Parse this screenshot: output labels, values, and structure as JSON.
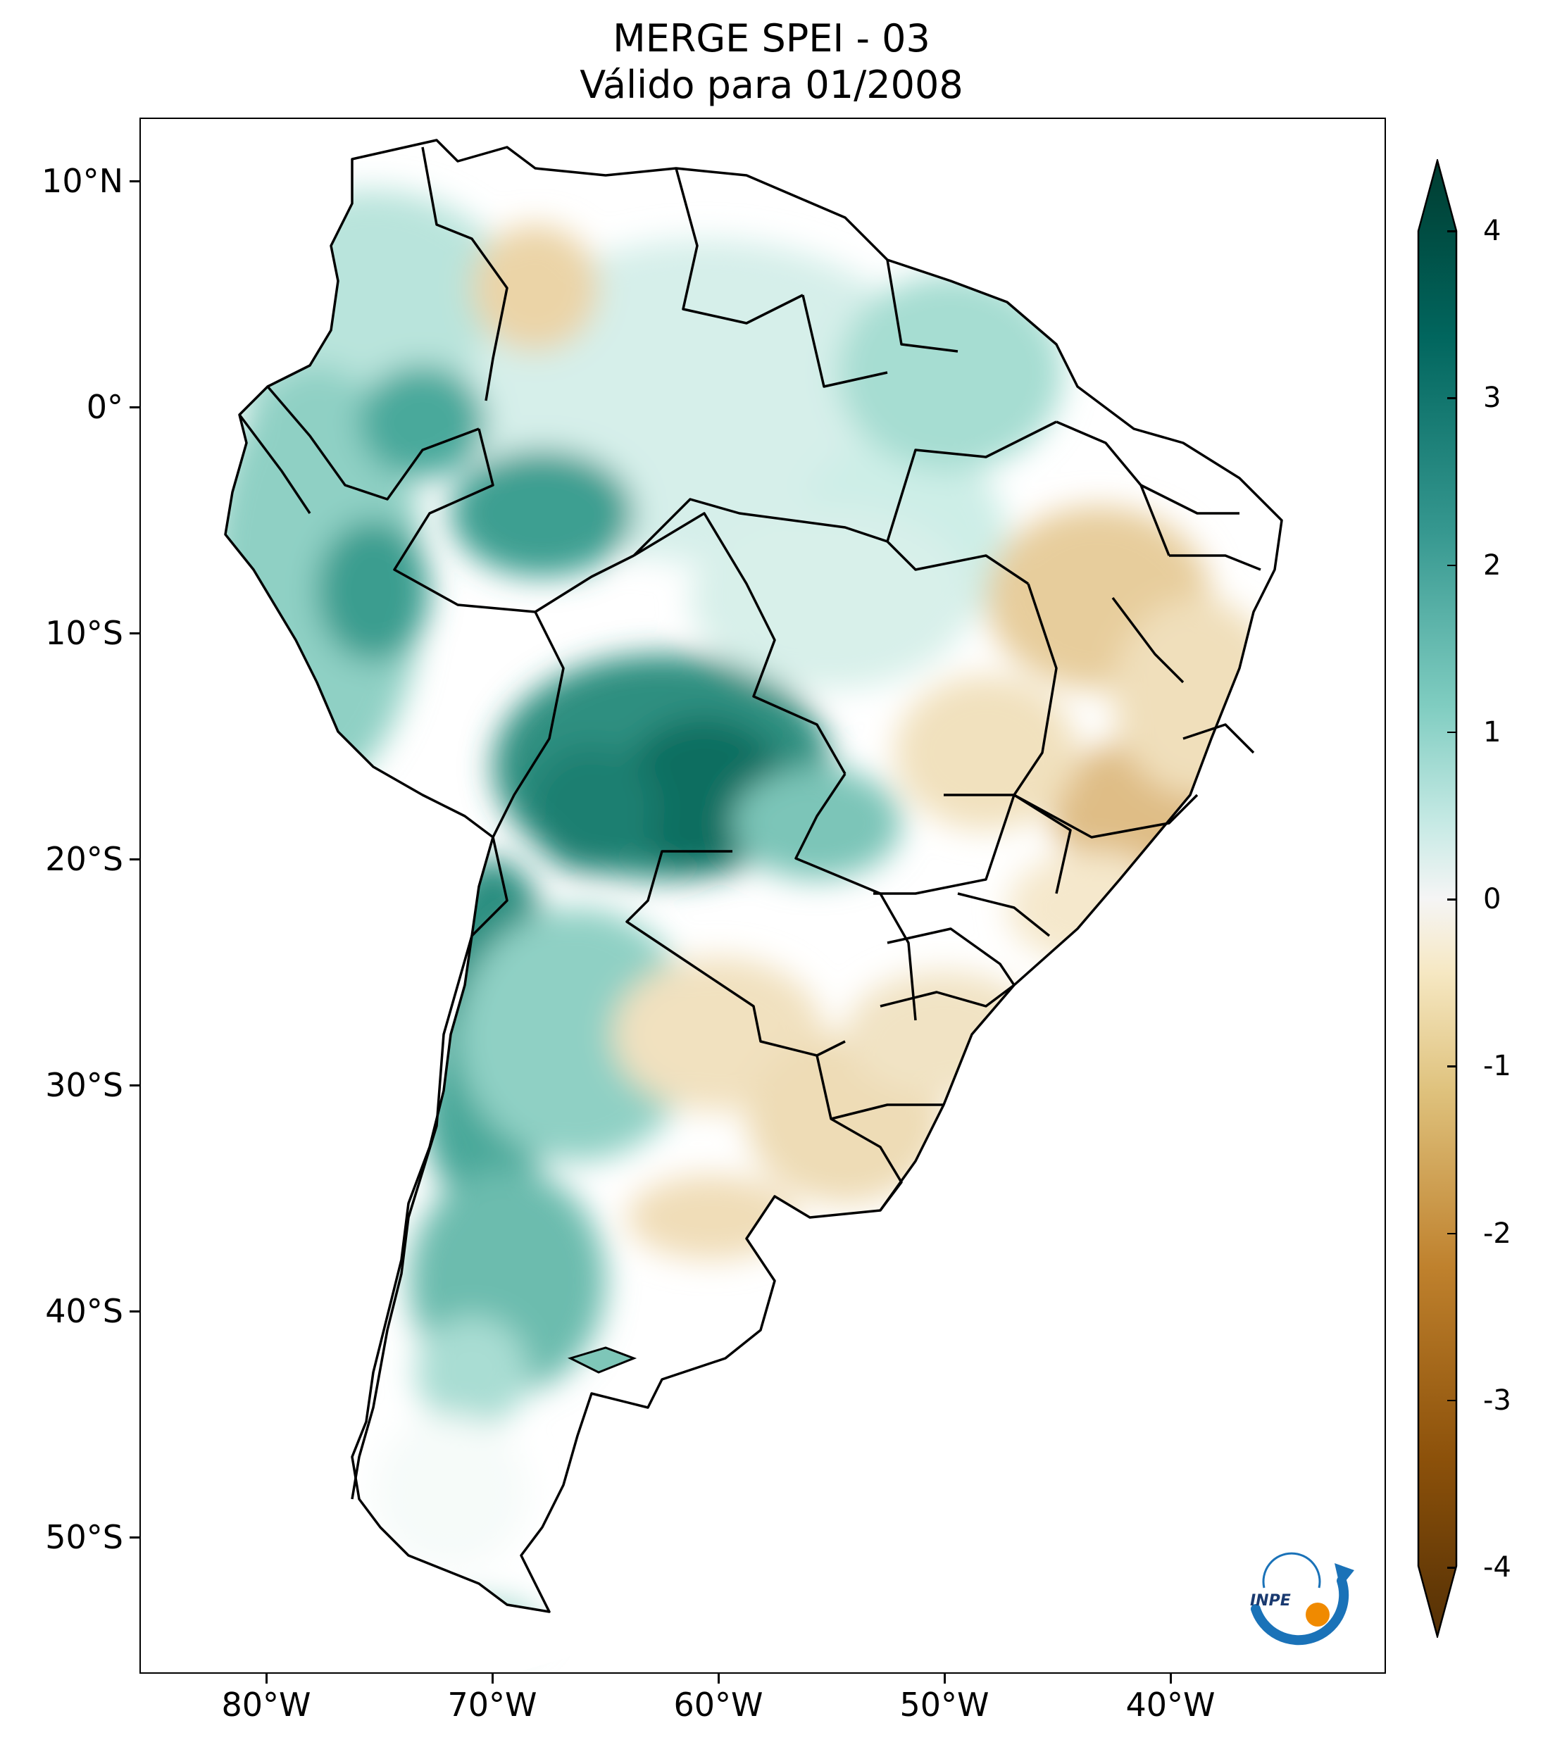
{
  "title": {
    "line1": "MERGE   SPEI - 03",
    "line2": "Válido para 01/2008"
  },
  "map": {
    "region": "South America",
    "projection": "lat-lon",
    "lon_range": [
      -85,
      -29
    ],
    "lat_range": [
      -56,
      13
    ],
    "lat_labels": [
      "10°N",
      "0°",
      "10°S",
      "20°S",
      "30°S",
      "40°S",
      "50°S"
    ],
    "lon_labels": [
      "80°W",
      "70°W",
      "60°W",
      "50°W",
      "40°W"
    ],
    "colors": {
      "wet_strong": "#0b6b5e",
      "wet_mid": "#3aa293",
      "wet_light": "#c5ebe4",
      "neutral": "#ffffff",
      "dry_light": "#f1e2c0",
      "dry_mid": "#d7b27a",
      "dry_strong": "#a0672a"
    }
  },
  "colorbar": {
    "min": -4,
    "max": 4,
    "tick_labels": [
      "4",
      "3",
      "2",
      "1",
      "0",
      "-1",
      "-2",
      "-3",
      "-4"
    ],
    "extend": "both"
  },
  "logo": {
    "text": "INPE"
  }
}
